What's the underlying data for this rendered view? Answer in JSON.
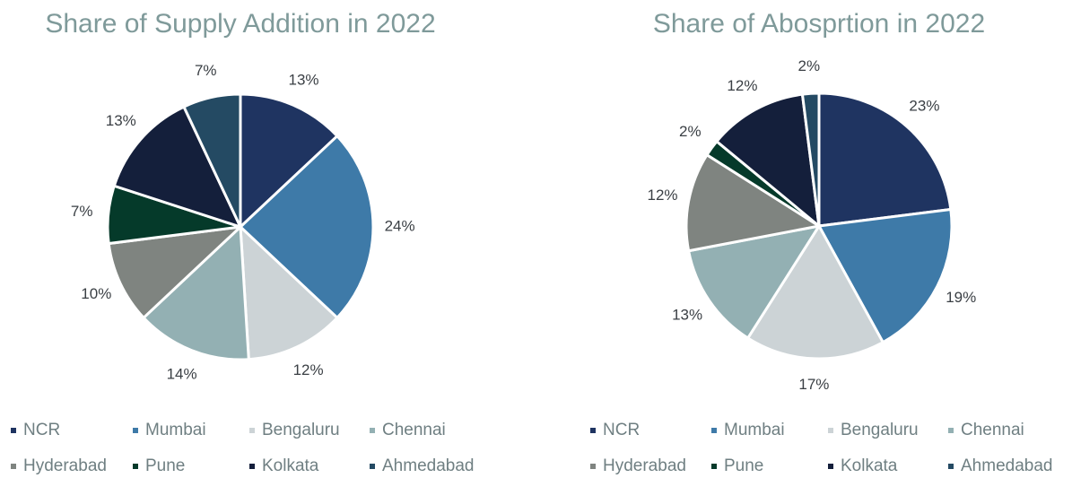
{
  "chart_data": [
    {
      "type": "pie",
      "title": "Share of Supply Addition in 2022",
      "categories": [
        "NCR",
        "Mumbai",
        "Bengaluru",
        "Chennai",
        "Hyderabad",
        "Pune",
        "Kolkata",
        "Ahmedabad"
      ],
      "values": [
        13,
        24,
        12,
        14,
        10,
        7,
        13,
        7
      ],
      "value_labels": [
        "13%",
        "24%",
        "12%",
        "14%",
        "10%",
        "7%",
        "13%",
        "7%"
      ],
      "colors": [
        "#1f3461",
        "#3e7aa8",
        "#ccd3d6",
        "#93b0b3",
        "#7f8480",
        "#053a2a",
        "#141f3b",
        "#244a63"
      ],
      "legend": "bottom"
    },
    {
      "type": "pie",
      "title": "Share of Abosprtion in 2022",
      "categories": [
        "NCR",
        "Mumbai",
        "Bengaluru",
        "Chennai",
        "Hyderabad",
        "Pune",
        "Kolkata",
        "Ahmedabad"
      ],
      "values": [
        23,
        19,
        17,
        13,
        12,
        2,
        12,
        2
      ],
      "value_labels": [
        "23%",
        "19%",
        "17%",
        "13%",
        "12%",
        "2%",
        "12%",
        "2%"
      ],
      "colors": [
        "#1f3461",
        "#3e7aa8",
        "#ccd3d6",
        "#93b0b3",
        "#7f8480",
        "#053a2a",
        "#141f3b",
        "#244a63"
      ],
      "legend": "bottom"
    }
  ]
}
